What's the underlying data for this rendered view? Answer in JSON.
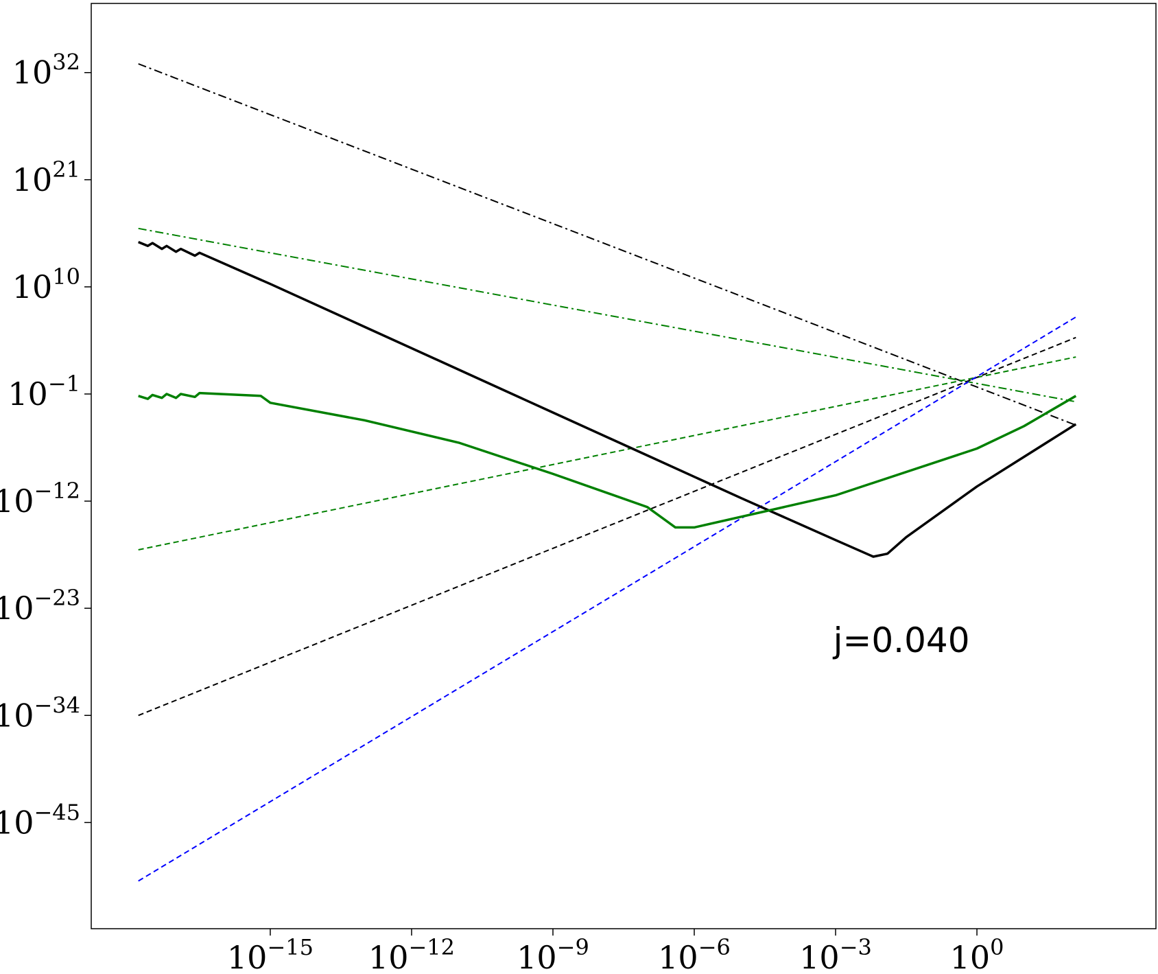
{
  "chart_data": {
    "type": "line",
    "title": "",
    "xlabel": "",
    "ylabel": "",
    "x_scale": "log",
    "y_scale": "log",
    "xlim_log10": [
      -18.8,
      3.8
    ],
    "ylim_log10": [
      -55.9,
      39.1
    ],
    "grid": false,
    "x_ticks": [
      {
        "exp": -15,
        "base": "10",
        "sup": "−15"
      },
      {
        "exp": -12,
        "base": "10",
        "sup": "−12"
      },
      {
        "exp": -9,
        "base": "10",
        "sup": "−9"
      },
      {
        "exp": -6,
        "base": "10",
        "sup": "−6"
      },
      {
        "exp": -3,
        "base": "10",
        "sup": "−3"
      },
      {
        "exp": 0,
        "base": "10",
        "sup": "0"
      }
    ],
    "y_ticks": [
      {
        "exp": 32,
        "base": "10",
        "sup": "32"
      },
      {
        "exp": 21,
        "base": "10",
        "sup": "21"
      },
      {
        "exp": 10,
        "base": "10",
        "sup": "10"
      },
      {
        "exp": -1,
        "base": "10",
        "sup": "−1"
      },
      {
        "exp": -12,
        "base": "10",
        "sup": "−12"
      },
      {
        "exp": -23,
        "base": "10",
        "sup": "−23"
      },
      {
        "exp": -34,
        "base": "10",
        "sup": "−34"
      },
      {
        "exp": -45,
        "base": "10",
        "sup": "−45"
      }
    ],
    "annotation": {
      "text": "j=0.040",
      "x_log10": -3.05,
      "y_log10": -27.5
    },
    "series": [
      {
        "id": "black-dashdot",
        "color": "#000000",
        "dash": "dashdot",
        "width": 2,
        "log_x": [
          -17.8,
          2.1
        ],
        "log_y": [
          32.9,
          -4.2
        ]
      },
      {
        "id": "green-dashdot",
        "color": "#008000",
        "dash": "dashdot",
        "width": 2,
        "log_x": [
          -17.8,
          2.1
        ],
        "log_y": [
          16.0,
          -1.8
        ]
      },
      {
        "id": "green-dashed",
        "color": "#008000",
        "dash": "dashed",
        "width": 2,
        "log_x": [
          -17.8,
          2.1
        ],
        "log_y": [
          -17.0,
          2.8
        ]
      },
      {
        "id": "black-dashed",
        "color": "#000000",
        "dash": "dashed",
        "width": 2,
        "log_x": [
          -17.8,
          2.1
        ],
        "log_y": [
          -34.0,
          4.8
        ]
      },
      {
        "id": "blue-dashed",
        "color": "#0000ff",
        "dash": "dashed",
        "width": 2,
        "log_x": [
          -17.8,
          2.1
        ],
        "log_y": [
          -51.0,
          6.9
        ]
      },
      {
        "id": "black-solid",
        "color": "#000000",
        "dash": "solid",
        "width": 3.5,
        "log_x": [
          -17.8,
          -17.6,
          -17.5,
          -17.3,
          -17.2,
          -17.0,
          -16.9,
          -16.6,
          -16.5,
          -15.0,
          -13.0,
          -11.0,
          -9.0,
          -7.0,
          -5.0,
          -3.0,
          -2.2,
          -1.9,
          -1.5,
          0.0,
          2.1
        ],
        "log_y": [
          14.6,
          14.2,
          14.5,
          13.9,
          14.2,
          13.6,
          13.9,
          13.2,
          13.5,
          10.3,
          5.9,
          1.5,
          -2.9,
          -7.3,
          -11.7,
          -16.0,
          -17.7,
          -17.4,
          -15.7,
          -10.5,
          -4.1
        ]
      },
      {
        "id": "green-solid",
        "color": "#008000",
        "dash": "solid",
        "width": 3.5,
        "log_x": [
          -17.8,
          -17.6,
          -17.5,
          -17.3,
          -17.2,
          -17.0,
          -16.9,
          -16.6,
          -16.5,
          -15.2,
          -15.0,
          -13.0,
          -11.0,
          -9.0,
          -7.0,
          -6.4,
          -6.0,
          -3.0,
          0.0,
          1.0,
          2.1
        ],
        "log_y": [
          -1.2,
          -1.5,
          -1.1,
          -1.4,
          -1.0,
          -1.4,
          -1.0,
          -1.3,
          -0.9,
          -1.2,
          -1.9,
          -3.7,
          -6.0,
          -9.2,
          -12.6,
          -14.7,
          -14.7,
          -11.4,
          -6.6,
          -4.3,
          -1.2
        ]
      }
    ]
  }
}
